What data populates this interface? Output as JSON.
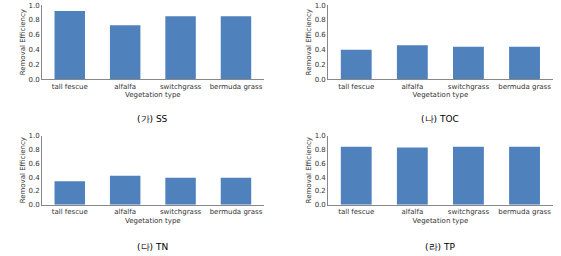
{
  "chart_data": [
    {
      "type": "bar",
      "title": "(가) SS",
      "categories": [
        "tall fescue",
        "alfalfa",
        "switchgrass",
        "bermuda grass"
      ],
      "values": [
        0.92,
        0.73,
        0.85,
        0.85
      ],
      "color": "#4f81bd",
      "xlabel": "Vegetation type",
      "ylabel": "Removal Efficiency",
      "ylim": [
        0,
        1
      ],
      "yticks": [
        {
          "value": 0,
          "label": "0.0"
        },
        0.2,
        0.4,
        0.6,
        0.8,
        {
          "value": 1,
          "label": "1.0"
        }
      ],
      "grid": false
    },
    {
      "type": "bar",
      "title": "(나) TOC",
      "categories": [
        "tall fescue",
        "alfalfa",
        "switchgrass",
        "bermuda grass"
      ],
      "values": [
        0.4,
        0.46,
        0.44,
        0.44
      ],
      "color": "#4f81bd",
      "xlabel": "Vegetation type",
      "ylabel": "Removal Efficiency",
      "ylim": [
        0,
        1
      ],
      "yticks": [
        {
          "value": 0,
          "label": "0.0"
        },
        0.2,
        0.4,
        0.6,
        0.8,
        {
          "value": 1,
          "label": "1.0"
        }
      ],
      "grid": false
    },
    {
      "type": "bar",
      "title": "(다) TN",
      "categories": [
        "tall fescue",
        "alfalfa",
        "switchgrass",
        "bermuda grass"
      ],
      "values": [
        0.34,
        0.42,
        0.39,
        0.39
      ],
      "color": "#4f81bd",
      "xlabel": "Vegetation type",
      "ylabel": "Removal Efficiency",
      "ylim": [
        0,
        1
      ],
      "yticks": [
        {
          "value": 0,
          "label": "0.0"
        },
        0.2,
        0.4,
        0.6,
        0.8,
        {
          "value": 1,
          "label": "1.0"
        }
      ],
      "grid": false
    },
    {
      "type": "bar",
      "title": "(라) TP",
      "categories": [
        "tall fescue",
        "alfalfa",
        "switchgrass",
        "bermuda grass"
      ],
      "values": [
        0.84,
        0.83,
        0.84,
        0.84
      ],
      "color": "#4f81bd",
      "xlabel": "Vegetation type",
      "ylabel": "Removal Efficiency",
      "ylim": [
        0,
        1
      ],
      "yticks": [
        {
          "value": 0,
          "label": "0.0"
        },
        0.2,
        0.4,
        0.6,
        0.8,
        {
          "value": 1,
          "label": "1.0"
        }
      ],
      "grid": false
    }
  ]
}
